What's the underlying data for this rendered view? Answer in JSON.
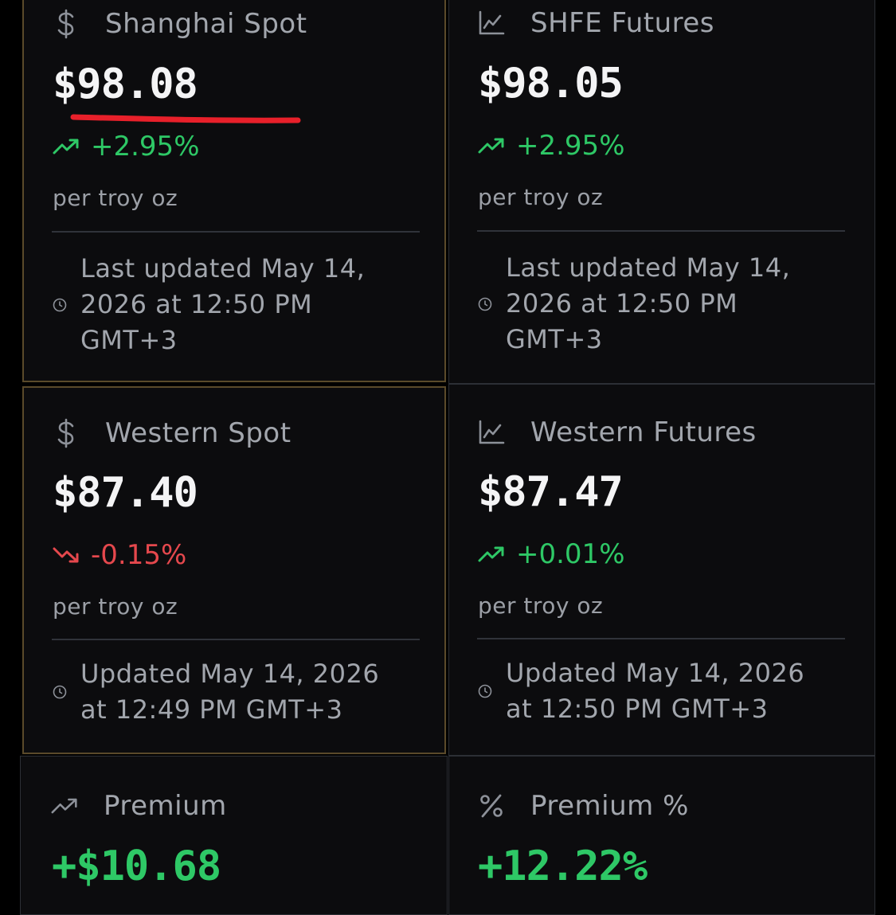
{
  "cards": {
    "shanghai_spot": {
      "label": "Shanghai Spot",
      "icon": "dollar-icon",
      "price": "$98.08",
      "change": "+2.95%",
      "unit": "per troy oz",
      "updated_line1": "Last updated May 14,",
      "updated_line2": "2026 at 12:50 PM",
      "updated_line3": "GMT+3"
    },
    "shfe_futures": {
      "label": "SHFE Futures",
      "icon": "line-chart-icon",
      "price": "$98.05",
      "change": "+2.95%",
      "unit": "per troy oz",
      "updated_line1": "Last updated May 14,",
      "updated_line2": "2026 at 12:50 PM",
      "updated_line3": "GMT+3"
    },
    "western_spot": {
      "label": "Western Spot",
      "icon": "dollar-icon",
      "price": "$87.40",
      "change": "-0.15%",
      "unit": "per troy oz",
      "updated_line1": "Updated May 14, 2026",
      "updated_line2": "at 12:49 PM GMT+3"
    },
    "western_futures": {
      "label": "Western Futures",
      "icon": "line-chart-icon",
      "price": "$87.47",
      "change": "+0.01%",
      "unit": "per troy oz",
      "updated_line1": "Updated May 14, 2026",
      "updated_line2": "at 12:50 PM GMT+3"
    },
    "premium": {
      "label": "Premium",
      "icon": "trending-up-icon",
      "price": "+$10.68"
    },
    "premium_pct": {
      "label": "Premium %",
      "icon": "percent-icon",
      "price": "+12.22%"
    }
  },
  "colors": {
    "positive": "#2ec866",
    "negative": "#e5484d",
    "highlight_border": "#5a4a2a",
    "annotation_underline": "#e8202a"
  }
}
